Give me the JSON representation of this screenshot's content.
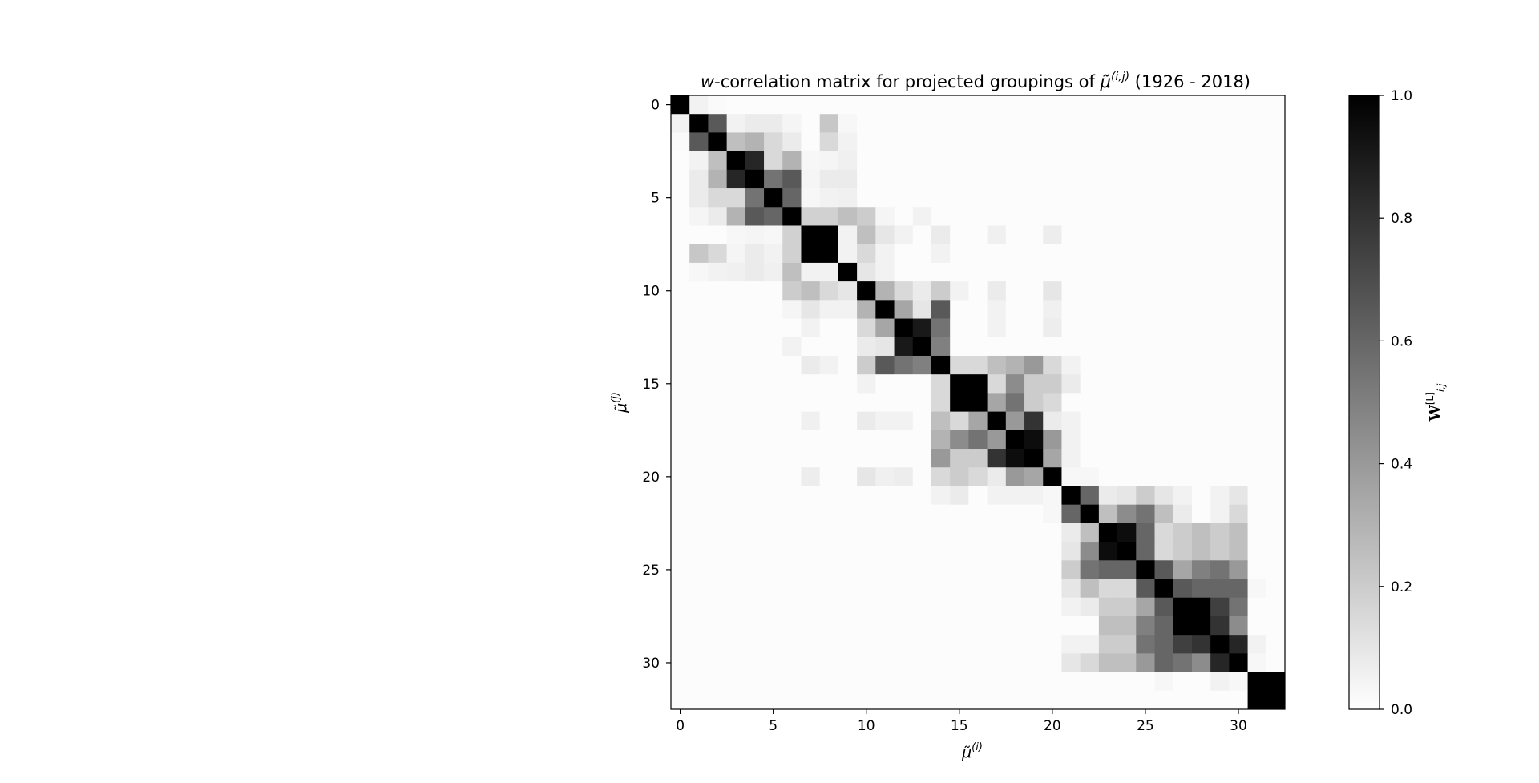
{
  "chart_data": {
    "type": "heatmap",
    "title": "w-correlation matrix for projected groupings of μ̃^(i,j) (1926 - 2018)",
    "title_parts": {
      "prefix_italic": "w",
      "main": "-correlation matrix for projected groupings of ",
      "symbol": "μ̃",
      "superscript": "(i,j)",
      "suffix": " (1926 - 2018)"
    },
    "xlabel": {
      "base": "μ̃",
      "sup": "(i)"
    },
    "ylabel": {
      "base": "μ̃",
      "sup": "(j)"
    },
    "size": 33,
    "x_ticks": [
      0,
      5,
      10,
      15,
      20,
      25,
      30
    ],
    "y_ticks": [
      0,
      5,
      10,
      15,
      20,
      25,
      30
    ],
    "colorbar": {
      "label": "W",
      "label_sup": "[L]",
      "label_sub": "i,j",
      "range": [
        0,
        1
      ],
      "ticks": [
        "0.0",
        "0.2",
        "0.4",
        "0.6",
        "0.8",
        "1.0"
      ],
      "colormap": "grayscale (0 = white, 1 = black)"
    },
    "diagonal": 1.0,
    "pairs": [
      [
        0,
        1,
        0.05
      ],
      [
        0,
        2,
        0.02
      ],
      [
        1,
        2,
        0.65
      ],
      [
        1,
        3,
        0.05
      ],
      [
        1,
        4,
        0.08
      ],
      [
        1,
        5,
        0.08
      ],
      [
        1,
        6,
        0.04
      ],
      [
        1,
        8,
        0.22
      ],
      [
        1,
        9,
        0.03
      ],
      [
        2,
        3,
        0.25
      ],
      [
        2,
        4,
        0.3
      ],
      [
        2,
        5,
        0.15
      ],
      [
        2,
        6,
        0.08
      ],
      [
        2,
        8,
        0.15
      ],
      [
        2,
        9,
        0.05
      ],
      [
        3,
        4,
        0.85
      ],
      [
        3,
        5,
        0.15
      ],
      [
        3,
        6,
        0.3
      ],
      [
        3,
        7,
        0.03
      ],
      [
        3,
        8,
        0.04
      ],
      [
        3,
        9,
        0.06
      ],
      [
        4,
        5,
        0.55
      ],
      [
        4,
        6,
        0.65
      ],
      [
        4,
        7,
        0.04
      ],
      [
        4,
        8,
        0.08
      ],
      [
        4,
        9,
        0.08
      ],
      [
        5,
        6,
        0.6
      ],
      [
        5,
        7,
        0.03
      ],
      [
        5,
        8,
        0.05
      ],
      [
        5,
        9,
        0.06
      ],
      [
        6,
        7,
        0.18
      ],
      [
        6,
        8,
        0.18
      ],
      [
        6,
        9,
        0.25
      ],
      [
        6,
        10,
        0.2
      ],
      [
        6,
        11,
        0.04
      ],
      [
        6,
        13,
        0.05
      ],
      [
        7,
        8,
        1.0
      ],
      [
        7,
        9,
        0.05
      ],
      [
        7,
        10,
        0.25
      ],
      [
        7,
        11,
        0.1
      ],
      [
        7,
        12,
        0.05
      ],
      [
        7,
        14,
        0.08
      ],
      [
        7,
        17,
        0.06
      ],
      [
        7,
        20,
        0.07
      ],
      [
        8,
        9,
        0.05
      ],
      [
        8,
        10,
        0.15
      ],
      [
        8,
        11,
        0.05
      ],
      [
        8,
        14,
        0.05
      ],
      [
        9,
        10,
        0.1
      ],
      [
        9,
        11,
        0.05
      ],
      [
        10,
        11,
        0.3
      ],
      [
        10,
        12,
        0.15
      ],
      [
        10,
        13,
        0.08
      ],
      [
        10,
        14,
        0.2
      ],
      [
        10,
        15,
        0.05
      ],
      [
        10,
        17,
        0.08
      ],
      [
        10,
        20,
        0.1
      ],
      [
        11,
        12,
        0.35
      ],
      [
        11,
        13,
        0.1
      ],
      [
        11,
        14,
        0.65
      ],
      [
        11,
        17,
        0.05
      ],
      [
        11,
        20,
        0.06
      ],
      [
        12,
        13,
        0.9
      ],
      [
        12,
        14,
        0.55
      ],
      [
        12,
        17,
        0.05
      ],
      [
        12,
        20,
        0.07
      ],
      [
        13,
        14,
        0.5
      ],
      [
        14,
        15,
        0.15
      ],
      [
        14,
        16,
        0.15
      ],
      [
        14,
        17,
        0.25
      ],
      [
        14,
        18,
        0.3
      ],
      [
        14,
        19,
        0.4
      ],
      [
        14,
        20,
        0.15
      ],
      [
        14,
        21,
        0.05
      ],
      [
        15,
        16,
        1.0
      ],
      [
        15,
        17,
        0.15
      ],
      [
        15,
        18,
        0.45
      ],
      [
        15,
        19,
        0.2
      ],
      [
        15,
        20,
        0.2
      ],
      [
        15,
        21,
        0.08
      ],
      [
        16,
        17,
        0.35
      ],
      [
        16,
        18,
        0.55
      ],
      [
        16,
        19,
        0.2
      ],
      [
        16,
        20,
        0.15
      ],
      [
        17,
        18,
        0.4
      ],
      [
        17,
        19,
        0.8
      ],
      [
        17,
        20,
        0.08
      ],
      [
        17,
        21,
        0.05
      ],
      [
        18,
        19,
        0.95
      ],
      [
        18,
        20,
        0.4
      ],
      [
        18,
        21,
        0.05
      ],
      [
        19,
        20,
        0.35
      ],
      [
        19,
        21,
        0.05
      ],
      [
        20,
        21,
        0.03
      ],
      [
        20,
        22,
        0.03
      ],
      [
        21,
        22,
        0.6
      ],
      [
        21,
        23,
        0.08
      ],
      [
        21,
        24,
        0.1
      ],
      [
        21,
        25,
        0.2
      ],
      [
        21,
        26,
        0.1
      ],
      [
        21,
        27,
        0.05
      ],
      [
        21,
        29,
        0.05
      ],
      [
        21,
        30,
        0.1
      ],
      [
        22,
        23,
        0.25
      ],
      [
        22,
        24,
        0.45
      ],
      [
        22,
        25,
        0.55
      ],
      [
        22,
        26,
        0.25
      ],
      [
        22,
        27,
        0.08
      ],
      [
        22,
        29,
        0.05
      ],
      [
        22,
        30,
        0.15
      ],
      [
        23,
        24,
        0.95
      ],
      [
        23,
        25,
        0.6
      ],
      [
        23,
        26,
        0.15
      ],
      [
        23,
        27,
        0.2
      ],
      [
        23,
        28,
        0.25
      ],
      [
        23,
        29,
        0.2
      ],
      [
        23,
        30,
        0.25
      ],
      [
        24,
        25,
        0.6
      ],
      [
        24,
        26,
        0.15
      ],
      [
        24,
        27,
        0.2
      ],
      [
        24,
        28,
        0.25
      ],
      [
        24,
        29,
        0.2
      ],
      [
        24,
        30,
        0.25
      ],
      [
        25,
        26,
        0.65
      ],
      [
        25,
        27,
        0.35
      ],
      [
        25,
        28,
        0.5
      ],
      [
        25,
        29,
        0.55
      ],
      [
        25,
        30,
        0.4
      ],
      [
        26,
        27,
        0.65
      ],
      [
        26,
        28,
        0.6
      ],
      [
        26,
        29,
        0.6
      ],
      [
        26,
        30,
        0.6
      ],
      [
        26,
        31,
        0.03
      ],
      [
        27,
        28,
        1.0
      ],
      [
        27,
        29,
        0.75
      ],
      [
        27,
        30,
        0.55
      ],
      [
        28,
        29,
        0.8
      ],
      [
        28,
        30,
        0.45
      ],
      [
        29,
        30,
        0.85
      ],
      [
        29,
        31,
        0.05
      ],
      [
        30,
        31,
        0.03
      ],
      [
        31,
        32,
        1.0
      ]
    ]
  }
}
